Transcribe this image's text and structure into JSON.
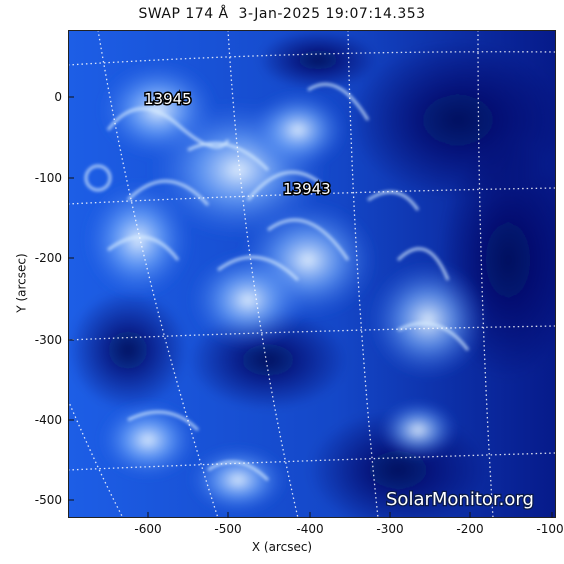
{
  "title": "SWAP 174 Å  3-Jan-2025 19:07:14.353",
  "axes": {
    "xlabel": "X (arcsec)",
    "ylabel": "Y (arcsec)",
    "xlim": [
      -690,
      -90
    ],
    "ylim": [
      -520,
      82
    ],
    "xticks": [
      "-600",
      "-500",
      "-400",
      "-300",
      "-200",
      "-100"
    ],
    "yticks": [
      "0",
      "-100",
      "-200",
      "-300",
      "-400",
      "-500"
    ]
  },
  "regions": [
    {
      "label": "13945"
    },
    {
      "label": "13943"
    }
  ],
  "watermark": "SolarMonitor.org",
  "colors": {
    "background_dark": "#00127a",
    "mid": "#1a4fd8",
    "bright": "#cfe7ff",
    "grid": "#ffffff"
  }
}
